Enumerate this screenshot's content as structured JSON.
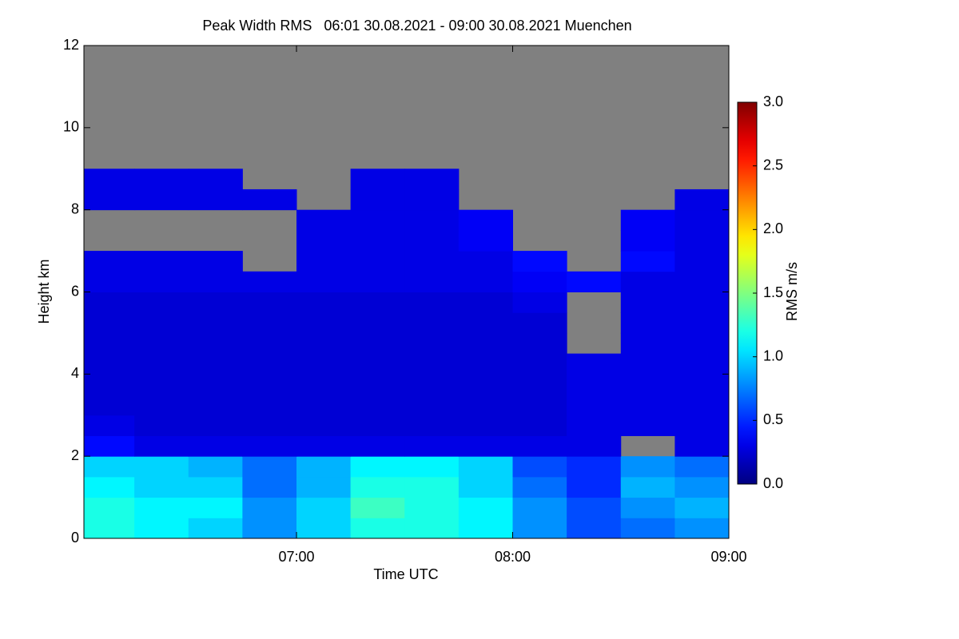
{
  "chart_data": {
    "type": "heatmap",
    "title": "Peak Width RMS   06:01 30.08.2021 - 09:00 30.08.2021 Muenchen",
    "x_label": "Time UTC",
    "y_label": "Height km",
    "colorbar_label": "RMS m/s",
    "x_edges": [
      6.0167,
      6.25,
      6.5,
      6.75,
      7.0,
      7.25,
      7.5,
      7.75,
      8.0,
      8.25,
      8.5,
      8.75,
      9.0
    ],
    "y_edges": [
      0,
      0.5,
      1,
      1.5,
      2,
      2.5,
      3,
      3.5,
      4,
      4.5,
      5,
      5.5,
      6,
      6.5,
      7,
      7.5,
      8,
      8.5,
      9,
      9.5,
      10,
      10.5,
      11,
      11.5,
      12
    ],
    "values": [
      [
        1.2,
        1.1,
        1.0,
        0.8,
        1.0,
        1.2,
        1.2,
        1.1,
        0.8,
        0.6,
        0.7,
        0.8
      ],
      [
        1.2,
        1.1,
        1.1,
        0.8,
        1.0,
        1.3,
        1.2,
        1.1,
        0.8,
        0.6,
        0.8,
        0.9
      ],
      [
        1.1,
        1.0,
        1.0,
        0.7,
        0.9,
        1.2,
        1.2,
        1.0,
        0.7,
        0.5,
        0.9,
        0.8
      ],
      [
        1.0,
        1.0,
        0.9,
        0.7,
        0.9,
        1.1,
        1.1,
        1.0,
        0.6,
        0.5,
        0.8,
        0.7
      ],
      [
        0.4,
        0.3,
        0.3,
        0.3,
        0.3,
        0.3,
        0.3,
        0.3,
        0.3,
        0.3,
        null,
        0.3
      ],
      [
        0.3,
        0.25,
        0.25,
        0.25,
        0.25,
        0.25,
        0.25,
        0.25,
        0.25,
        0.3,
        0.3,
        0.3
      ],
      [
        0.25,
        0.25,
        0.25,
        0.25,
        0.25,
        0.25,
        0.25,
        0.25,
        0.25,
        0.3,
        0.3,
        0.3
      ],
      [
        0.25,
        0.25,
        0.25,
        0.25,
        0.25,
        0.25,
        0.25,
        0.25,
        0.25,
        0.3,
        0.3,
        0.3
      ],
      [
        0.25,
        0.25,
        0.25,
        0.25,
        0.25,
        0.25,
        0.25,
        0.25,
        0.25,
        0.3,
        0.3,
        0.3
      ],
      [
        0.25,
        0.25,
        0.25,
        0.25,
        0.25,
        0.25,
        0.25,
        0.25,
        0.25,
        null,
        0.3,
        0.3
      ],
      [
        0.25,
        0.25,
        0.25,
        0.25,
        0.25,
        0.25,
        0.25,
        0.25,
        0.25,
        null,
        0.3,
        0.3
      ],
      [
        0.25,
        0.25,
        0.25,
        0.25,
        0.25,
        0.25,
        0.25,
        0.25,
        0.3,
        null,
        0.3,
        0.3
      ],
      [
        0.3,
        0.3,
        0.3,
        0.3,
        0.3,
        0.3,
        0.3,
        0.3,
        0.35,
        0.4,
        0.3,
        0.3
      ],
      [
        0.3,
        0.3,
        0.3,
        null,
        0.3,
        0.3,
        0.3,
        0.3,
        0.4,
        null,
        0.4,
        0.3
      ],
      [
        null,
        null,
        null,
        null,
        0.3,
        0.3,
        0.3,
        0.35,
        null,
        null,
        0.35,
        0.3
      ],
      [
        null,
        null,
        null,
        null,
        0.3,
        0.3,
        0.3,
        0.35,
        null,
        null,
        0.35,
        0.3
      ],
      [
        0.3,
        0.3,
        0.3,
        0.3,
        null,
        0.3,
        0.3,
        null,
        null,
        null,
        null,
        0.3
      ],
      [
        0.3,
        0.3,
        0.3,
        null,
        null,
        0.3,
        0.3,
        null,
        null,
        null,
        null,
        null
      ],
      [
        null,
        null,
        null,
        null,
        null,
        null,
        null,
        null,
        null,
        null,
        null,
        null
      ],
      [
        null,
        null,
        null,
        null,
        null,
        null,
        null,
        null,
        null,
        null,
        null,
        null
      ],
      [
        null,
        null,
        null,
        null,
        null,
        null,
        null,
        null,
        null,
        null,
        null,
        null
      ],
      [
        null,
        null,
        null,
        null,
        null,
        null,
        null,
        null,
        null,
        null,
        null,
        null
      ],
      [
        null,
        null,
        null,
        null,
        null,
        null,
        null,
        null,
        null,
        null,
        null,
        null
      ],
      [
        null,
        null,
        null,
        null,
        null,
        null,
        null,
        null,
        null,
        null,
        null,
        null
      ]
    ],
    "xlim": [
      6.0167,
      9.0
    ],
    "xticks": [
      {
        "value": 7,
        "label": "07:00"
      },
      {
        "value": 8,
        "label": "08:00"
      },
      {
        "value": 9,
        "label": "09:00"
      }
    ],
    "ylim": [
      0,
      12
    ],
    "yticks": [
      0,
      2,
      4,
      6,
      8,
      10,
      12
    ],
    "zlim": [
      0,
      3
    ],
    "zticks": [
      {
        "value": 0,
        "label": "0.0"
      },
      {
        "value": 0.5,
        "label": "0.5"
      },
      {
        "value": 1,
        "label": "1.0"
      },
      {
        "value": 1.5,
        "label": "1.5"
      },
      {
        "value": 2,
        "label": "2.0"
      },
      {
        "value": 2.5,
        "label": "2.5"
      },
      {
        "value": 3,
        "label": "3.0"
      }
    ],
    "colormap": "jet",
    "missing_color": "#808080"
  }
}
